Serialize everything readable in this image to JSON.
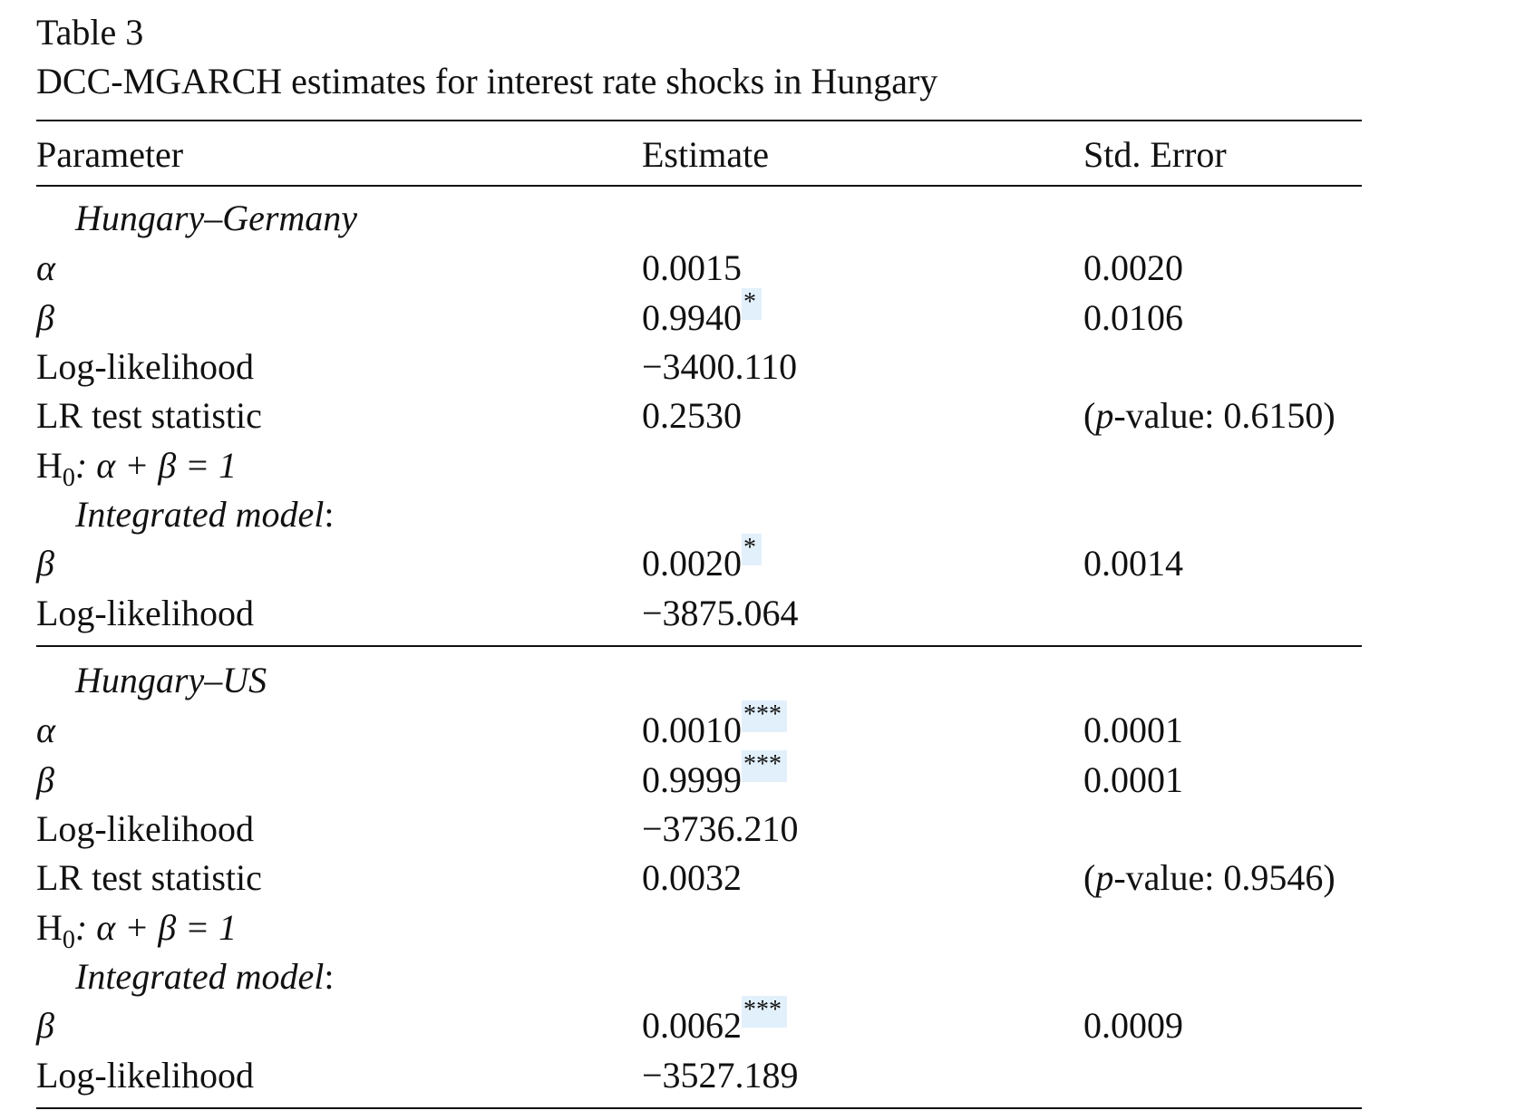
{
  "caption": {
    "label": "Table 3",
    "title": "DCC-MGARCH estimates for interest rate shocks in Hungary"
  },
  "columns": {
    "param": "Parameter",
    "estimate": "Estimate",
    "stderr": "Std. Error"
  },
  "sections": [
    {
      "heading": "Hungary–Germany",
      "alpha": {
        "param": "α",
        "estimate": "0.0015",
        "stars": "",
        "stderr": "0.0020"
      },
      "beta": {
        "param": "β",
        "estimate": "0.9940",
        "stars": "*",
        "stderr": "0.0106"
      },
      "loglik": {
        "param": "Log-likelihood",
        "estimate": "−3400.110"
      },
      "lr": {
        "param": "LR test statistic",
        "estimate": "0.2530",
        "pvalue_label": "p",
        "pvalue_text": "-value: 0.6150)"
      },
      "h0": {
        "H": "H",
        "sub": "0",
        "rest": ": α + β = 1"
      },
      "integrated": {
        "heading": "Integrated model",
        "colon": ":"
      },
      "int_beta": {
        "param": "β",
        "estimate": "0.0020",
        "stars": "*",
        "stderr": "0.0014"
      },
      "int_loglik": {
        "param": "Log-likelihood",
        "estimate": "−3875.064"
      }
    },
    {
      "heading": "Hungary–US",
      "alpha": {
        "param": "α",
        "estimate": "0.0010",
        "stars": "***",
        "stderr": "0.0001"
      },
      "beta": {
        "param": "β",
        "estimate": "0.9999",
        "stars": "***",
        "stderr": "0.0001"
      },
      "loglik": {
        "param": "Log-likelihood",
        "estimate": "−3736.210"
      },
      "lr": {
        "param": "LR test statistic",
        "estimate": "0.0032",
        "pvalue_label": "p",
        "pvalue_text": "-value: 0.9546)"
      },
      "h0": {
        "H": "H",
        "sub": "0",
        "rest": ": α + β = 1"
      },
      "integrated": {
        "heading": "Integrated model",
        "colon": ":"
      },
      "int_beta": {
        "param": "β",
        "estimate": "0.0062",
        "stars": "***",
        "stderr": "0.0009"
      },
      "int_loglik": {
        "param": "Log-likelihood",
        "estimate": "−3527.189"
      }
    }
  ]
}
